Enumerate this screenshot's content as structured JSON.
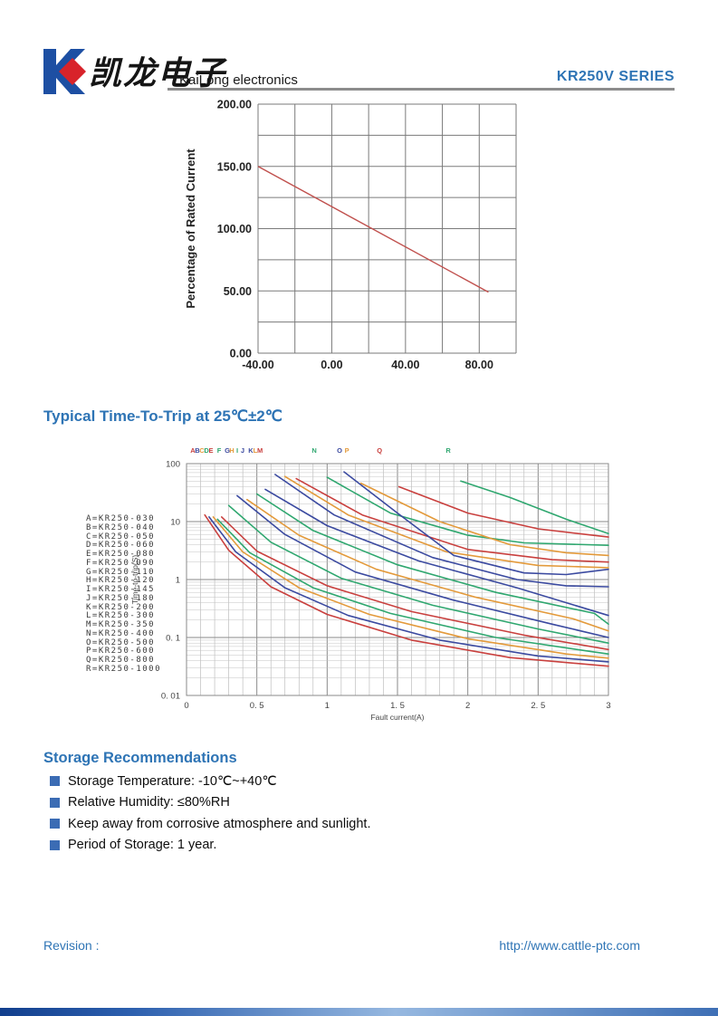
{
  "header": {
    "brand_cn": "凯龙电子",
    "brand_en": "KaiLong electronics",
    "series": "KR250V SERIES"
  },
  "sections": {
    "trip_title": "Typical Time-To-Trip at 25℃±2℃",
    "storage_title": "Storage Recommendations"
  },
  "storage_items": [
    "Storage Temperature: -10℃~+40℃",
    "Relative Humidity: ≤80%RH",
    "Keep away from corrosive atmosphere and sunlight.",
    "Period of Storage: 1 year."
  ],
  "footer": {
    "revision_label": "Revision :",
    "url": "http://www.cattle-ptc.com"
  },
  "colors": {
    "accent_blue": "#2e74b5",
    "bullet_blue": "#3b6cb4",
    "logo_blue": "#1d4fa3",
    "logo_red": "#d8232a",
    "rule_gray": "#8c8c8c",
    "grid_dark": "#7a7a7a",
    "grid_light": "#b8b8b8"
  },
  "chart_data": [
    {
      "type": "line",
      "title": "",
      "xlabel": "",
      "ylabel": "Percentage of Rated Current",
      "xlim": [
        -40,
        100
      ],
      "ylim": [
        0,
        200
      ],
      "x_grid_step": 20,
      "y_grid_step": 25,
      "x_ticks": [
        {
          "v": -40,
          "label": "-40.00"
        },
        {
          "v": 0,
          "label": "0.00"
        },
        {
          "v": 40,
          "label": "40.00"
        },
        {
          "v": 80,
          "label": "80.00"
        }
      ],
      "y_ticks": [
        {
          "v": 0,
          "label": "0.00"
        },
        {
          "v": 50,
          "label": "50.00"
        },
        {
          "v": 100,
          "label": "100.00"
        },
        {
          "v": 150,
          "label": "150.00"
        },
        {
          "v": 200,
          "label": "200.00"
        }
      ],
      "grid": true,
      "legend_position": "none",
      "series": [
        {
          "name": "current-derating-line",
          "color": "#c0504d",
          "points": [
            [
              -40,
              150
            ],
            [
              85,
              49
            ]
          ]
        }
      ]
    },
    {
      "type": "line",
      "title": "Typical Time-To-Trip at 25℃±2℃",
      "xlabel": "Fault current(A)",
      "ylabel": "Time-to-trip(S)",
      "xlim": [
        0,
        3
      ],
      "ylog": false,
      "ylim": [
        0.01,
        100
      ],
      "y_scale": "log",
      "x_minor_step": 0.1,
      "x_major_step": 0.5,
      "x_ticks": [
        {
          "v": 0,
          "label": "0"
        },
        {
          "v": 0.5,
          "label": "0. 5"
        },
        {
          "v": 1,
          "label": "1"
        },
        {
          "v": 1.5,
          "label": "1. 5"
        },
        {
          "v": 2,
          "label": "2"
        },
        {
          "v": 2.5,
          "label": "2. 5"
        },
        {
          "v": 3,
          "label": "3"
        }
      ],
      "y_ticks": [
        {
          "v": 100,
          "label": "100"
        },
        {
          "v": 10,
          "label": "10"
        },
        {
          "v": 1,
          "label": "1"
        },
        {
          "v": 0.1,
          "label": "0. 1"
        },
        {
          "v": 0.01,
          "label": "0. 01"
        }
      ],
      "grid": true,
      "legend_position": "left",
      "series": [
        {
          "letter": "A",
          "name": "KR250-030",
          "color": "#c9403e",
          "letter_x": 0.045,
          "points": [
            [
              0.13,
              13
            ],
            [
              0.3,
              3.2
            ],
            [
              0.6,
              0.75
            ],
            [
              1.0,
              0.25
            ],
            [
              1.6,
              0.09
            ],
            [
              2.3,
              0.045
            ],
            [
              3,
              0.032
            ]
          ]
        },
        {
          "letter": "B",
          "name": "KR250-040",
          "color": "#3b4aa0",
          "letter_x": 0.077,
          "points": [
            [
              0.16,
              12
            ],
            [
              0.35,
              3.0
            ],
            [
              0.7,
              0.72
            ],
            [
              1.15,
              0.24
            ],
            [
              1.8,
              0.09
            ],
            [
              2.5,
              0.048
            ],
            [
              3,
              0.038
            ]
          ]
        },
        {
          "letter": "C",
          "name": "KR250-050",
          "color": "#e39a3b",
          "letter_x": 0.109,
          "points": [
            [
              0.19,
              12
            ],
            [
              0.4,
              3.0
            ],
            [
              0.8,
              0.72
            ],
            [
              1.3,
              0.25
            ],
            [
              2.0,
              0.095
            ],
            [
              2.7,
              0.052
            ],
            [
              3,
              0.044
            ]
          ]
        },
        {
          "letter": "D",
          "name": "KR250-060",
          "color": "#2fa76f",
          "letter_x": 0.142,
          "points": [
            [
              0.22,
              11
            ],
            [
              0.45,
              2.9
            ],
            [
              0.9,
              0.72
            ],
            [
              1.45,
              0.26
            ],
            [
              2.2,
              0.1
            ],
            [
              2.9,
              0.056
            ],
            [
              3,
              0.052
            ]
          ]
        },
        {
          "letter": "E",
          "name": "KR250-080",
          "color": "#c9403e",
          "letter_x": 0.174,
          "points": [
            [
              0.25,
              12
            ],
            [
              0.5,
              3.1
            ],
            [
              1.0,
              0.78
            ],
            [
              1.6,
              0.28
            ],
            [
              2.4,
              0.11
            ],
            [
              3,
              0.062
            ]
          ]
        },
        {
          "letter": "F",
          "name": "KR250-090",
          "color": "#2fa76f",
          "letter_x": 0.232,
          "points": [
            [
              0.3,
              19
            ],
            [
              0.6,
              4.4
            ],
            [
              1.1,
              1.05
            ],
            [
              1.75,
              0.36
            ],
            [
              2.5,
              0.14
            ],
            [
              3,
              0.08
            ]
          ]
        },
        {
          "letter": "G",
          "name": "KR250-110",
          "color": "#3b4aa0",
          "letter_x": 0.29,
          "points": [
            [
              0.36,
              28
            ],
            [
              0.7,
              6.0
            ],
            [
              1.2,
              1.35
            ],
            [
              1.9,
              0.44
            ],
            [
              2.6,
              0.17
            ],
            [
              3,
              0.1
            ]
          ]
        },
        {
          "letter": "H",
          "name": "KR250-120",
          "color": "#e39a3b",
          "letter_x": 0.322,
          "points": [
            [
              0.43,
              24
            ],
            [
              0.8,
              5.8
            ],
            [
              1.35,
              1.5
            ],
            [
              2.05,
              0.5
            ],
            [
              2.75,
              0.21
            ],
            [
              3,
              0.13
            ]
          ]
        },
        {
          "letter": "I",
          "name": "KR250-145",
          "color": "#2fa76f",
          "letter_x": 0.361,
          "points": [
            [
              0.5,
              30
            ],
            [
              0.9,
              7.0
            ],
            [
              1.5,
              1.8
            ],
            [
              2.2,
              0.6
            ],
            [
              2.9,
              0.26
            ],
            [
              3,
              0.17
            ]
          ]
        },
        {
          "letter": "J",
          "name": "KR250-180",
          "color": "#3b4aa0",
          "letter_x": 0.399,
          "points": [
            [
              0.56,
              36
            ],
            [
              1.0,
              8.5
            ],
            [
              1.65,
              2.1
            ],
            [
              2.35,
              0.72
            ],
            [
              3,
              0.24
            ]
          ]
        },
        {
          "letter": "K",
          "name": "KR250-200",
          "color": "#3b4aa0",
          "letter_x": 0.457,
          "points": [
            [
              0.63,
              65
            ],
            [
              1.05,
              13
            ],
            [
              1.75,
              2.4
            ],
            [
              2.35,
              1.0
            ],
            [
              2.7,
              0.78
            ],
            [
              3,
              0.75
            ]
          ]
        },
        {
          "letter": "L",
          "name": "KR250-300",
          "color": "#e39a3b",
          "letter_x": 0.489,
          "points": [
            [
              0.7,
              60
            ],
            [
              1.15,
              13
            ],
            [
              1.85,
              3.0
            ],
            [
              2.5,
              1.75
            ],
            [
              3,
              1.6
            ]
          ]
        },
        {
          "letter": "M",
          "name": "KR250-350",
          "color": "#c9403e",
          "letter_x": 0.522,
          "points": [
            [
              0.78,
              55
            ],
            [
              1.25,
              13
            ],
            [
              2.0,
              3.3
            ],
            [
              2.6,
              2.2
            ],
            [
              3,
              2.0
            ]
          ]
        },
        {
          "letter": "N",
          "name": "KR250-400",
          "color": "#2fa76f",
          "letter_x": 0.908,
          "points": [
            [
              1.0,
              58
            ],
            [
              1.45,
              14
            ],
            [
              2.0,
              5.8
            ],
            [
              2.4,
              4.3
            ],
            [
              3,
              3.9
            ]
          ]
        },
        {
          "letter": "O",
          "name": "KR250-500",
          "color": "#3b4aa0",
          "letter_x": 1.088,
          "points": [
            [
              1.12,
              72
            ],
            [
              1.5,
              14
            ],
            [
              1.9,
              2.6
            ],
            [
              2.4,
              1.3
            ],
            [
              2.7,
              1.22
            ],
            [
              3,
              1.5
            ]
          ]
        },
        {
          "letter": "P",
          "name": "KR250-600",
          "color": "#e39a3b",
          "letter_x": 1.14,
          "points": [
            [
              1.24,
              46
            ],
            [
              1.8,
              10
            ],
            [
              2.3,
              4.0
            ],
            [
              2.7,
              2.9
            ],
            [
              3,
              2.6
            ]
          ]
        },
        {
          "letter": "Q",
          "name": "KR250-800",
          "color": "#c9403e",
          "letter_x": 1.372,
          "points": [
            [
              1.51,
              40
            ],
            [
              2.0,
              14
            ],
            [
              2.5,
              7.5
            ],
            [
              3,
              5.4
            ]
          ]
        },
        {
          "letter": "R",
          "name": "KR250-1000",
          "color": "#2fa76f",
          "letter_x": 1.861,
          "points": [
            [
              1.95,
              50
            ],
            [
              2.3,
              26
            ],
            [
              2.7,
              11
            ],
            [
              3,
              6.2
            ]
          ]
        }
      ]
    }
  ]
}
